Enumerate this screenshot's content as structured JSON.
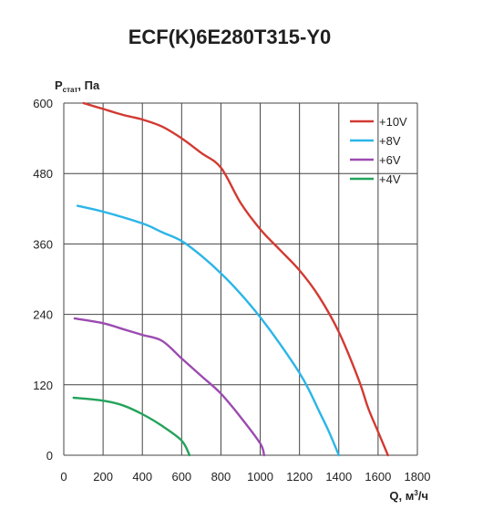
{
  "chart_data": {
    "type": "line",
    "title": "ECF(K)6E280T315-Y0",
    "ylabel_main": "P",
    "ylabel_sub": "стат",
    "ylabel_unit": ", Па",
    "xlabel_main": "Q, м",
    "xlabel_sup": "3",
    "xlabel_unit": "/ч",
    "xlim": [
      0,
      1800
    ],
    "ylim": [
      0,
      600
    ],
    "x_ticks": [
      0,
      200,
      400,
      600,
      800,
      1000,
      1200,
      1400,
      1600,
      1800
    ],
    "x_tick_labels": [
      "0",
      "200",
      "400",
      "600",
      "800",
      "1000",
      "1200",
      "1400",
      "1600",
      "1800"
    ],
    "y_ticks": [
      0,
      120,
      240,
      360,
      480,
      600
    ],
    "y_tick_labels": [
      "0",
      "120",
      "240",
      "360",
      "480",
      "600"
    ],
    "grid": true,
    "legend_position": "top-right",
    "series": [
      {
        "name": "+10V",
        "color": "#d23a32",
        "x": [
          100,
          200,
          300,
          400,
          500,
          600,
          700,
          800,
          900,
          1000,
          1100,
          1200,
          1300,
          1400,
          1500,
          1550,
          1600,
          1650
        ],
        "y": [
          600,
          590,
          580,
          572,
          560,
          540,
          515,
          490,
          430,
          385,
          350,
          315,
          270,
          210,
          130,
          80,
          40,
          0
        ]
      },
      {
        "name": "+8V",
        "color": "#2bb5e8",
        "x": [
          70,
          200,
          400,
          500,
          600,
          700,
          800,
          900,
          1000,
          1100,
          1200,
          1250,
          1300,
          1350,
          1400
        ],
        "y": [
          425,
          415,
          395,
          380,
          365,
          340,
          310,
          275,
          235,
          190,
          140,
          110,
          75,
          40,
          0
        ]
      },
      {
        "name": "+6V",
        "color": "#9b4bb0",
        "x": [
          55,
          200,
          300,
          400,
          500,
          600,
          700,
          800,
          900,
          1000,
          1020
        ],
        "y": [
          233,
          225,
          215,
          205,
          195,
          165,
          135,
          105,
          65,
          20,
          0
        ]
      },
      {
        "name": "+4V",
        "color": "#23a35a",
        "x": [
          50,
          200,
          300,
          400,
          500,
          600,
          640
        ],
        "y": [
          98,
          93,
          85,
          70,
          50,
          25,
          0
        ]
      }
    ]
  }
}
